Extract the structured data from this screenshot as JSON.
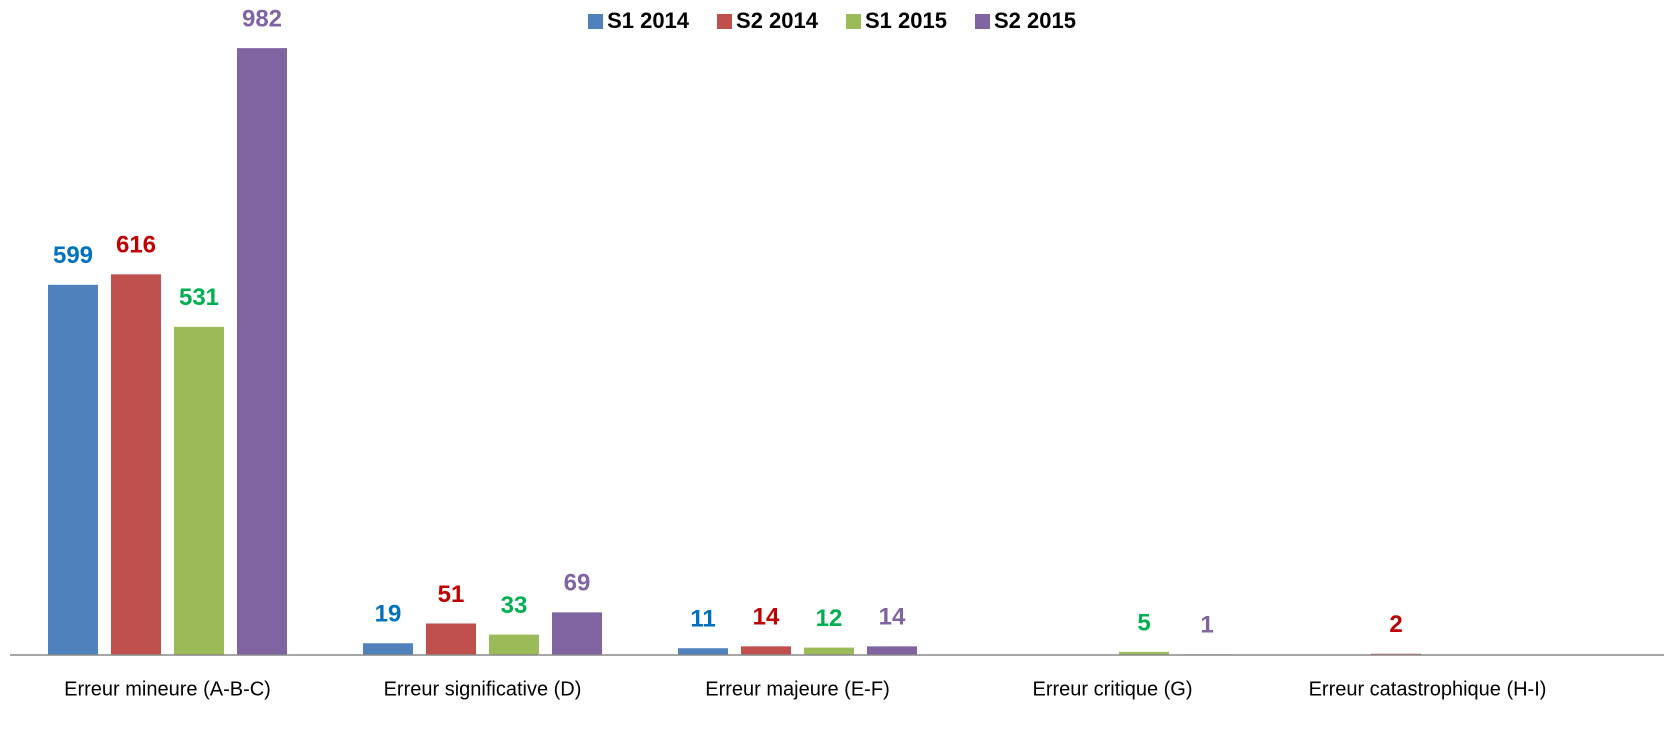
{
  "chart_data": {
    "type": "bar",
    "categories": [
      "Erreur mineure (A-B-C)",
      "Erreur significative (D)",
      "Erreur majeure (E-F)",
      "Erreur critique (G)",
      "Erreur catastrophique (H-I)"
    ],
    "series": [
      {
        "name": "S1 2014",
        "color": "#4f81bd",
        "label_color": "#0070c0",
        "values": [
          599,
          19,
          11,
          null,
          null
        ]
      },
      {
        "name": "S2 2014",
        "color": "#c0504d",
        "label_color": "#c00000",
        "values": [
          616,
          51,
          14,
          null,
          2
        ]
      },
      {
        "name": "S1 2015",
        "color": "#9bbb59",
        "label_color": "#00b050",
        "values": [
          531,
          33,
          12,
          5,
          null
        ]
      },
      {
        "name": "S2 2015",
        "color": "#8064a2",
        "label_color": "#8064a2",
        "values": [
          982,
          69,
          14,
          1,
          null
        ]
      }
    ],
    "ylim": [
      0,
      1000
    ],
    "legend": "top"
  }
}
